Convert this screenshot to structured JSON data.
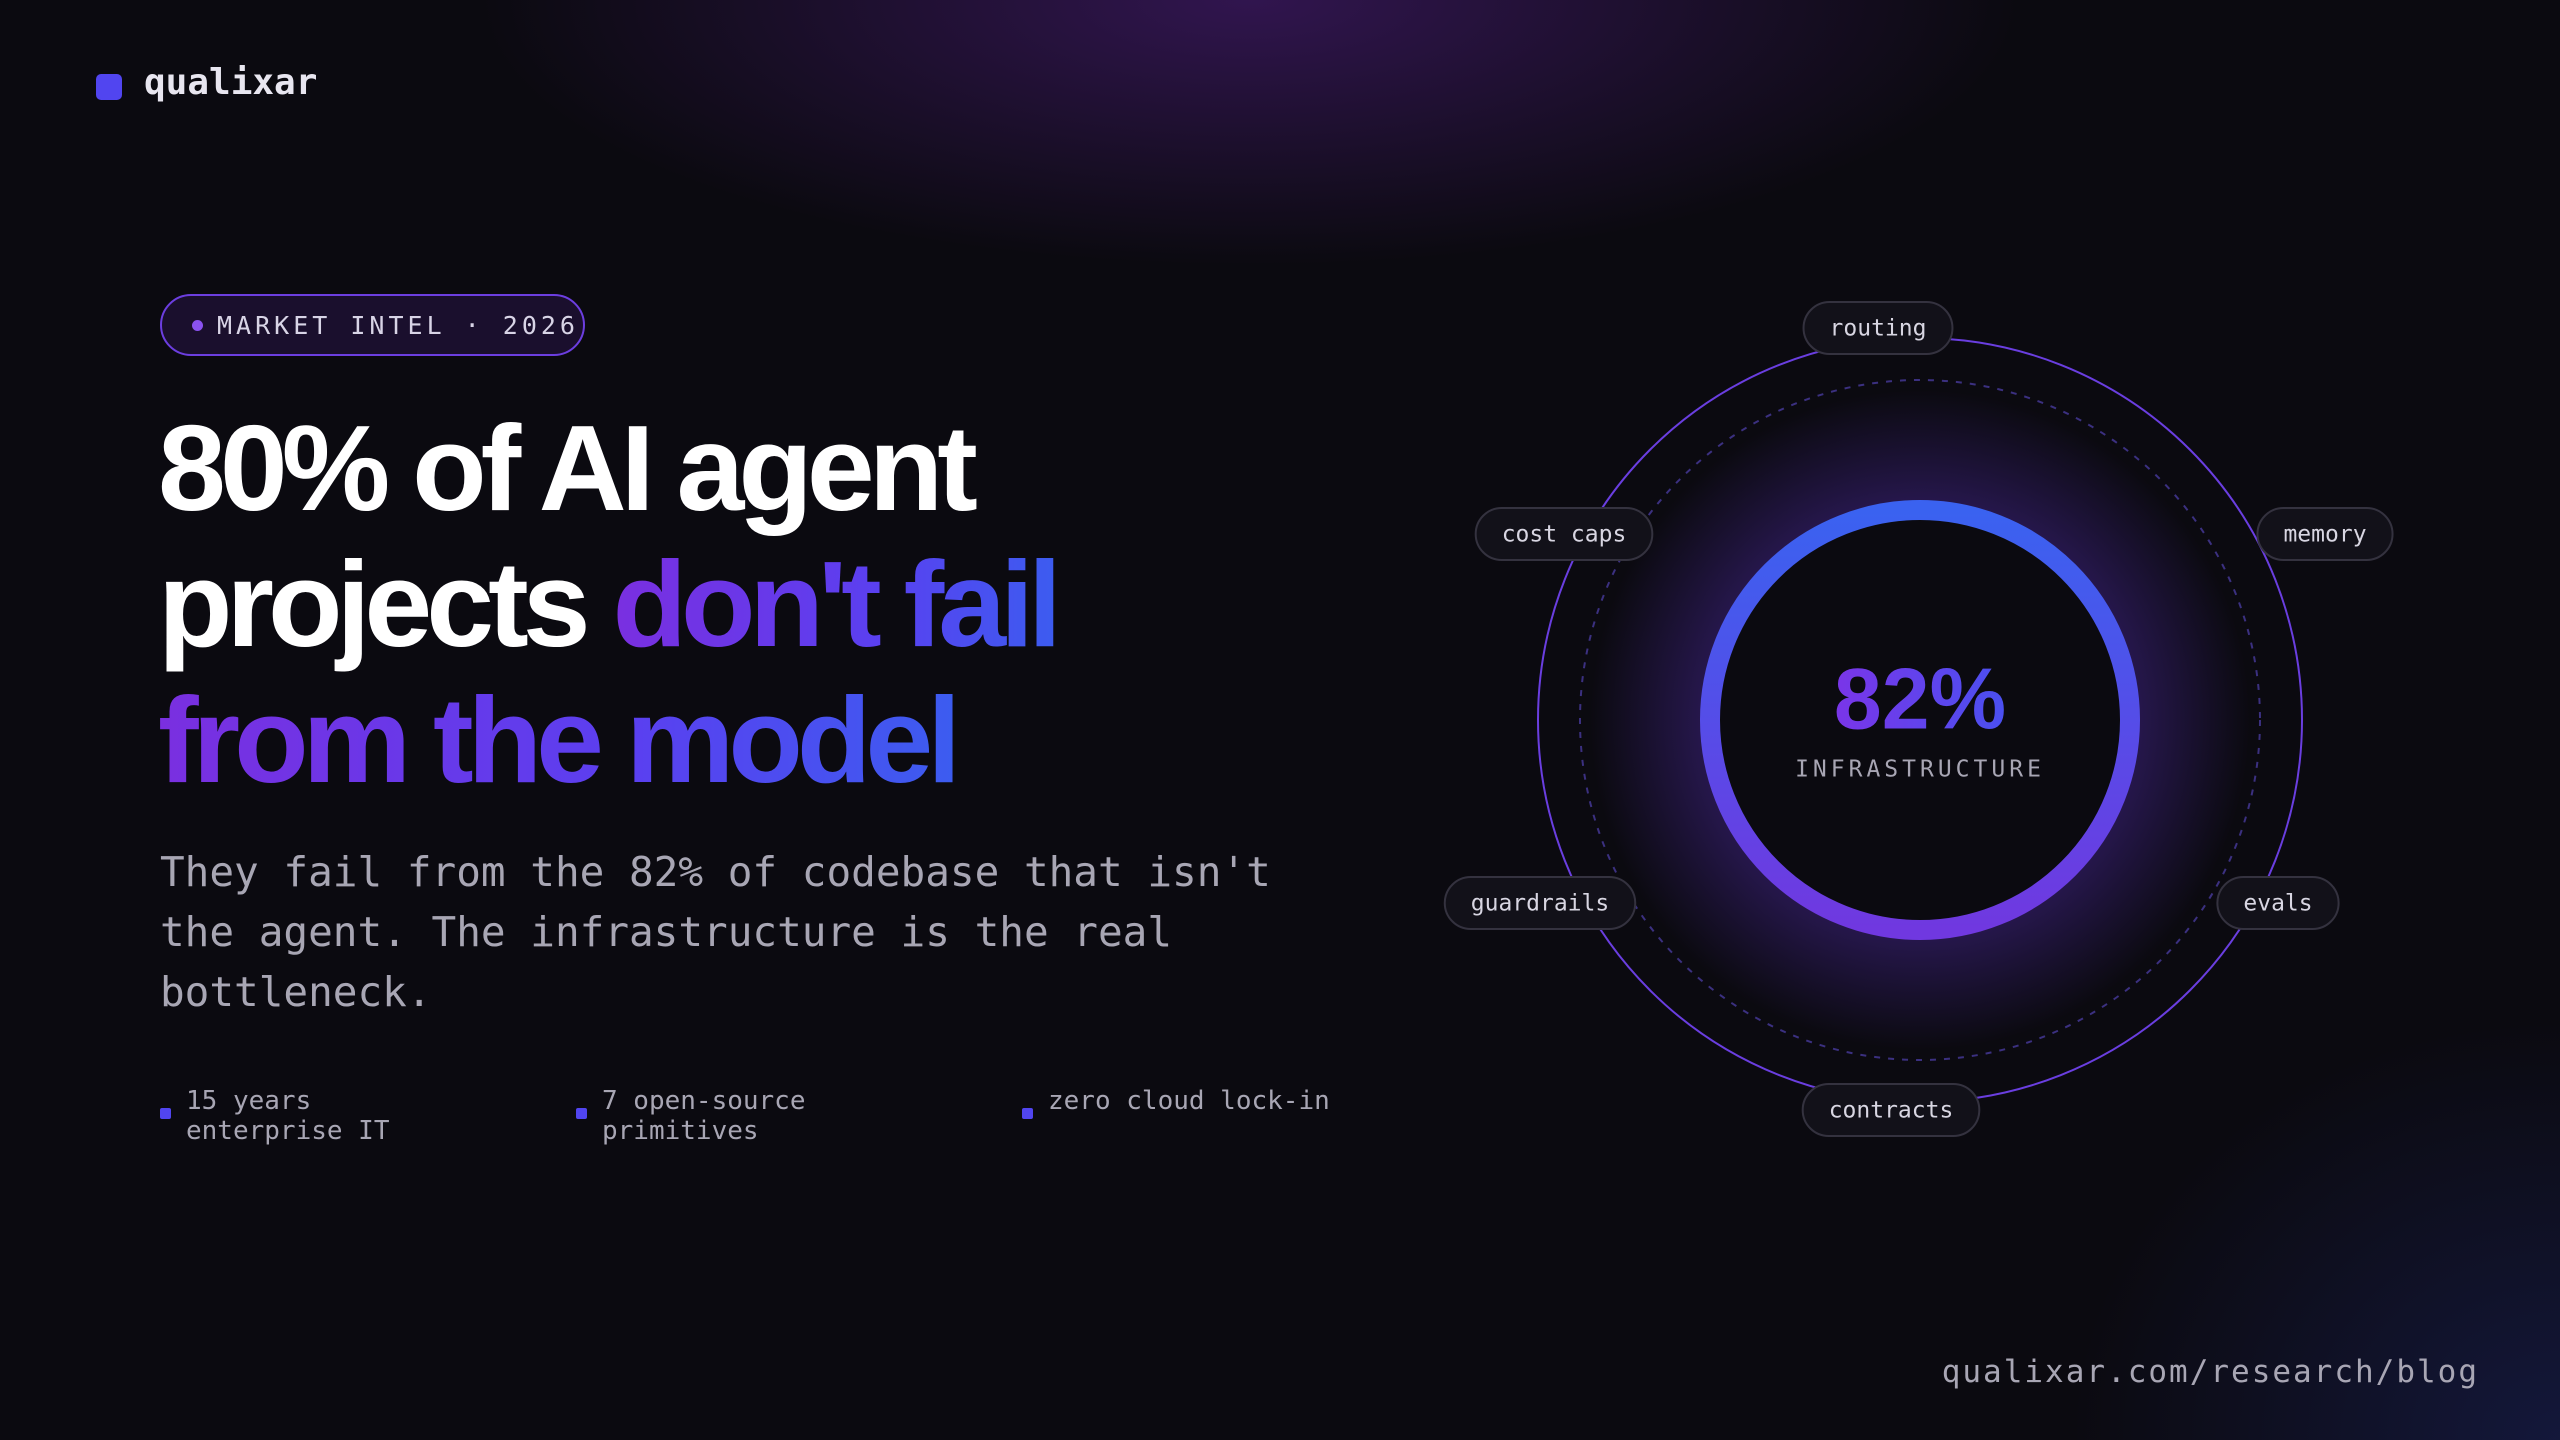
{
  "brand": "qualixar",
  "badge": "MARKET INTEL · 2026",
  "headline": {
    "line1": "80% of AI agent",
    "line2_plain": "projects",
    "line2_accent": "don't fail",
    "line3": "from the model"
  },
  "subtitle": "They fail from the 82% of codebase that isn't the agent. The infrastructure is the real bottleneck.",
  "facts": [
    "15 years enterprise IT",
    "7 open-source primitives",
    "zero cloud lock-in"
  ],
  "diagram": {
    "center_value": "82%",
    "center_label": "INFRASTRUCTURE",
    "nodes": [
      "routing",
      "memory",
      "evals",
      "contracts",
      "guardrails",
      "cost caps"
    ]
  },
  "footer": "qualixar.com/research/blog"
}
